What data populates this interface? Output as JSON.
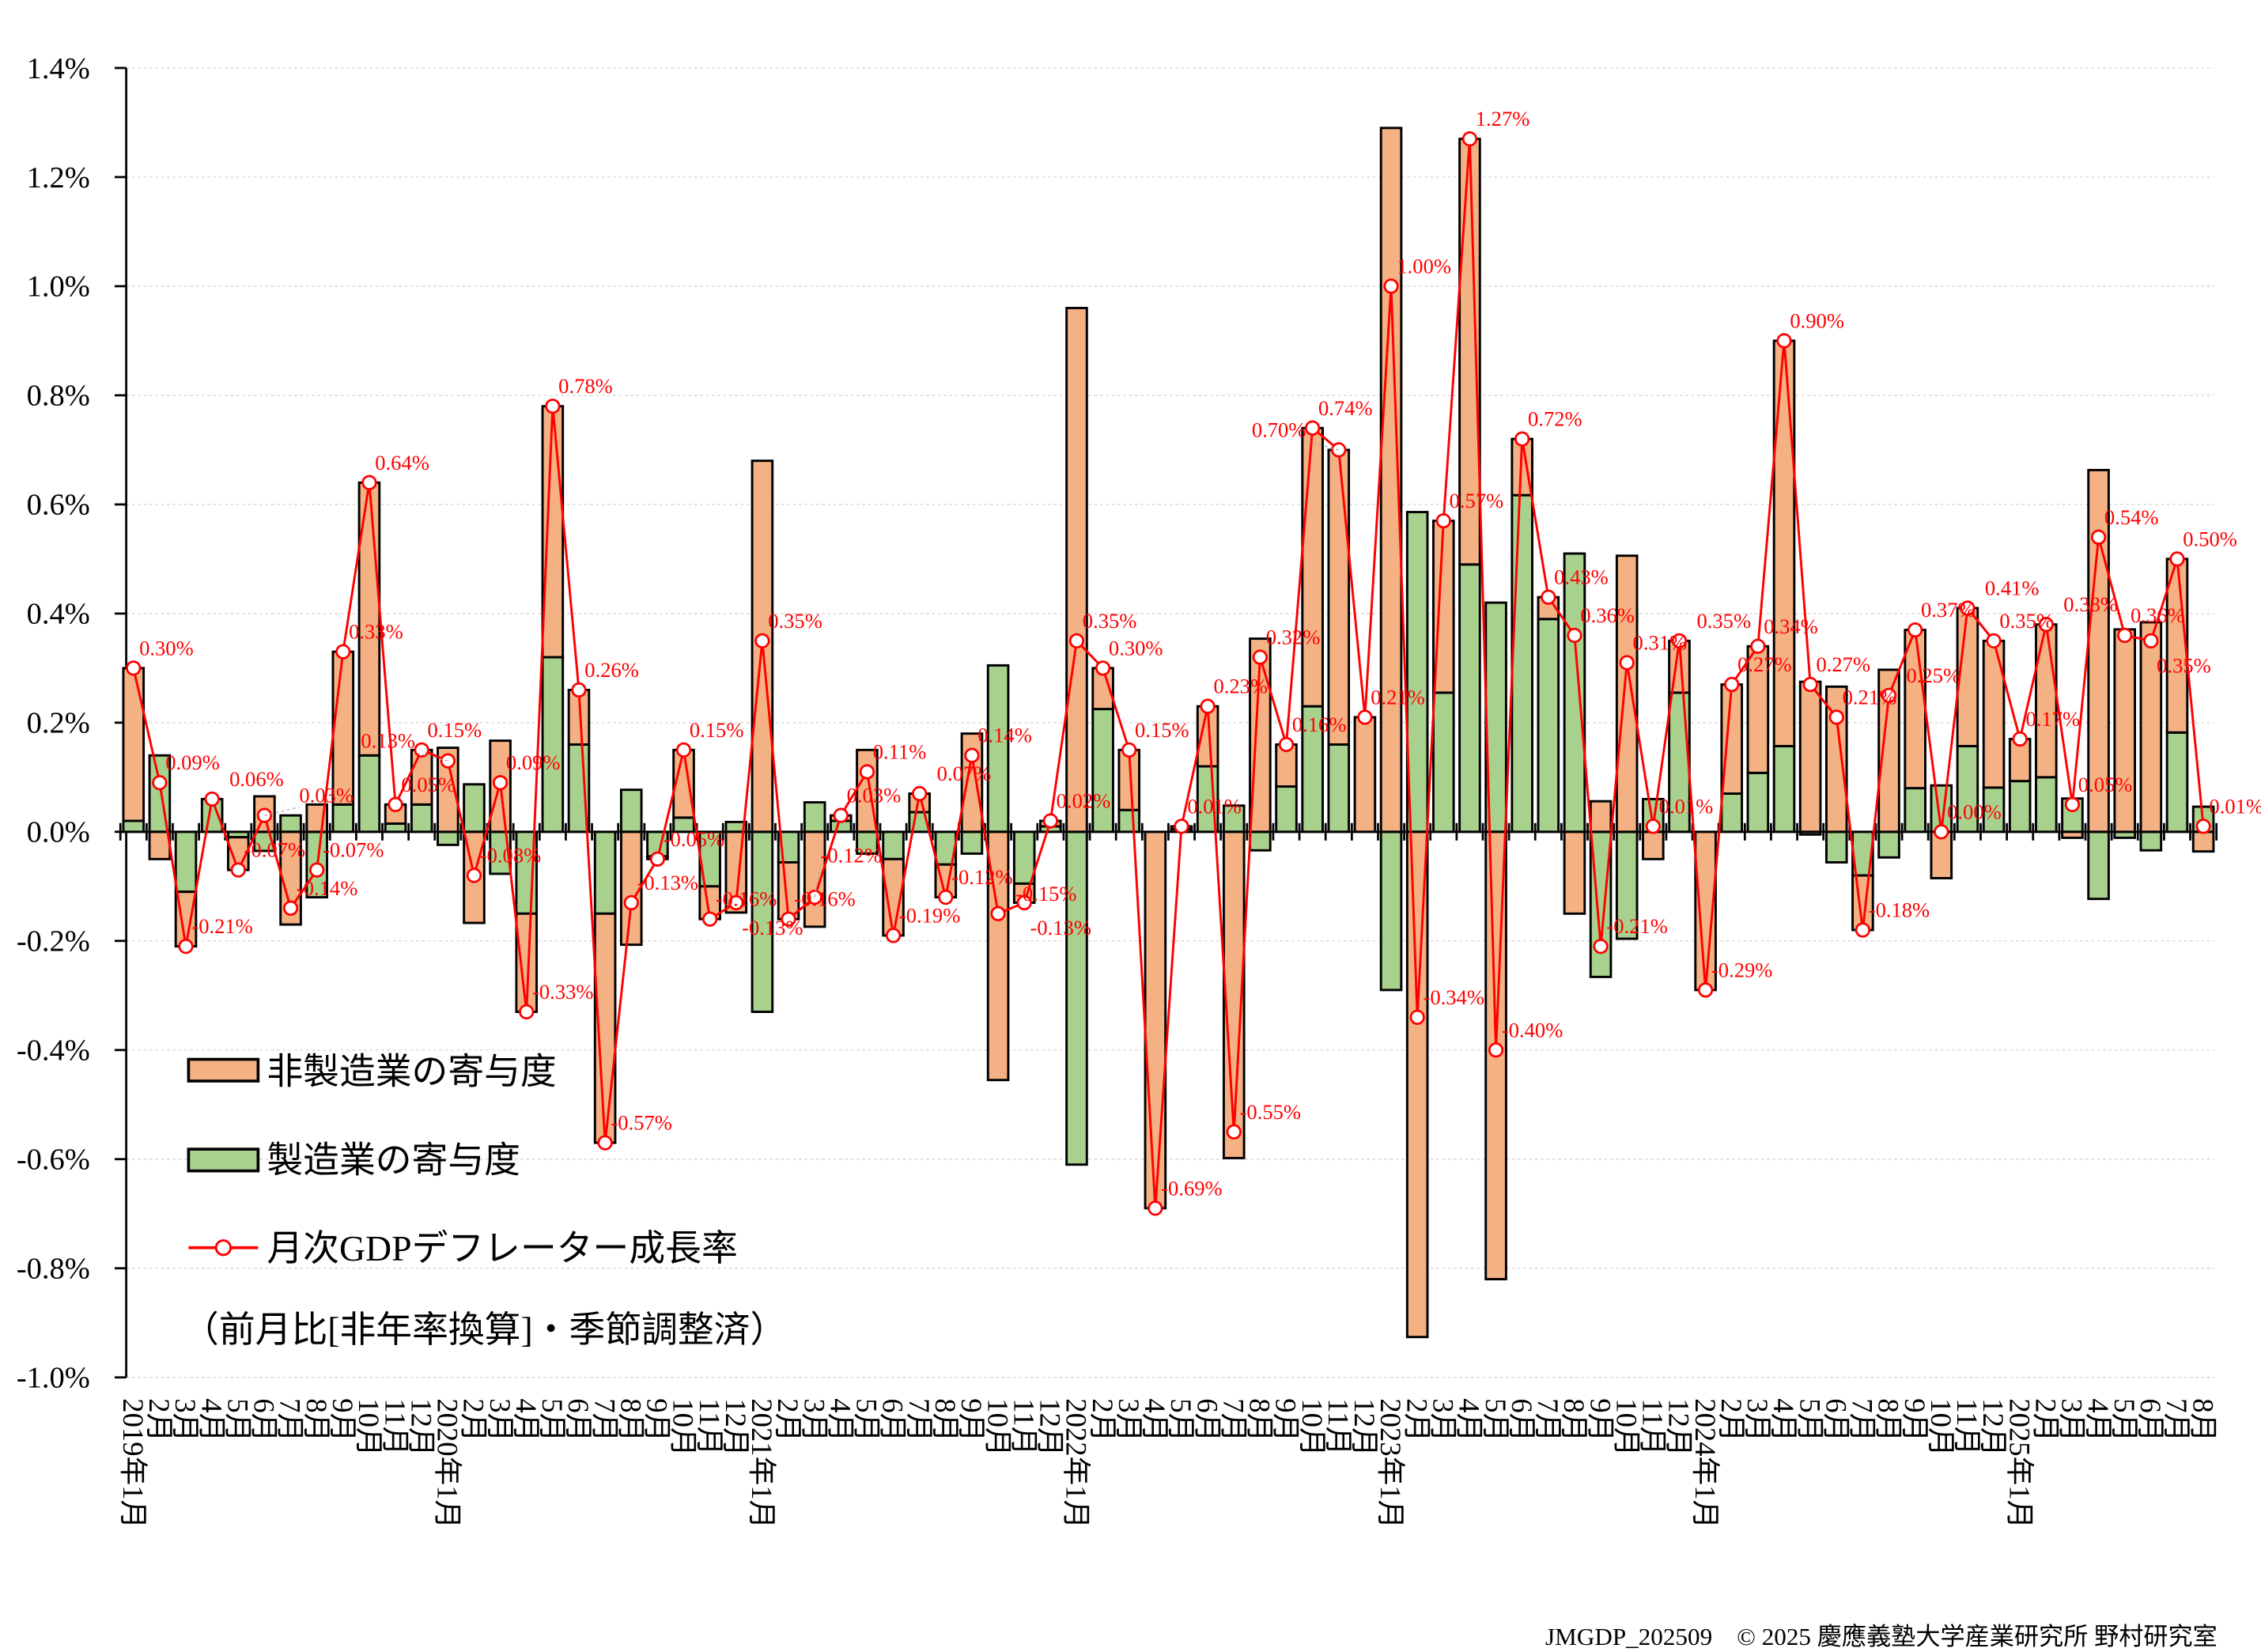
{
  "chart_data": {
    "type": "bar",
    "subtype": "stacked bar with line overlay",
    "ylim": [
      -1.0,
      1.4
    ],
    "yticks": [
      "1.4%",
      "1.2%",
      "1.0%",
      "0.8%",
      "0.6%",
      "0.4%",
      "0.2%",
      "0.0%",
      "-0.2%",
      "-0.4%",
      "-0.6%",
      "-0.8%",
      "-1.0%"
    ],
    "ytick_values": [
      1.4,
      1.2,
      1.0,
      0.8,
      0.6,
      0.4,
      0.2,
      0.0,
      -0.2,
      -0.4,
      -0.6,
      -0.8,
      -1.0
    ],
    "grid": true,
    "legend_placement": "bottom-left",
    "categories": [
      "2019年1月",
      "2月",
      "3月",
      "4月",
      "5月",
      "6月",
      "7月",
      "8月",
      "9月",
      "10月",
      "11月",
      "12月",
      "2020年1月",
      "2月",
      "3月",
      "4月",
      "5月",
      "6月",
      "7月",
      "8月",
      "9月",
      "10月",
      "11月",
      "12月",
      "2021年1月",
      "2月",
      "3月",
      "4月",
      "5月",
      "6月",
      "7月",
      "8月",
      "9月",
      "10月",
      "11月",
      "12月",
      "2022年1月",
      "2月",
      "3月",
      "4月",
      "5月",
      "6月",
      "7月",
      "8月",
      "9月",
      "10月",
      "11月",
      "12月",
      "2023年1月",
      "2月",
      "3月",
      "4月",
      "5月",
      "6月",
      "7月",
      "8月",
      "9月",
      "10月",
      "11月",
      "12月",
      "2024年1月",
      "2月",
      "3月",
      "4月",
      "5月",
      "6月",
      "7月",
      "8月",
      "9月",
      "10月",
      "11月",
      "12月",
      "2025年1月",
      "2月",
      "3月",
      "4月",
      "5月",
      "6月",
      "7月",
      "8月"
    ],
    "series": [
      {
        "name": "非製造業の寄与度",
        "kind": "bar",
        "color": "#F4B183",
        "values": [
          0.28,
          -0.05,
          -0.1,
          0,
          -0.06,
          0.065,
          -0.17,
          0.05,
          0.28,
          0.5,
          0.035,
          0.1,
          0.154,
          -0.167,
          0.167,
          -0.18,
          0.46,
          0.1,
          -0.42,
          -0.207,
          -0.005,
          0.124,
          -0.06,
          -0.148,
          0.68,
          -0.104,
          -0.174,
          0.01,
          0.15,
          -0.14,
          0.034,
          -0.06,
          0.18,
          -0.455,
          -0.035,
          0.01,
          0.96,
          0.075,
          0.11,
          -0.69,
          0.005,
          0.11,
          -0.598,
          0.354,
          0.077,
          0.51,
          0.54,
          0.21,
          1.29,
          -0.926,
          0.315,
          0.78,
          -0.82,
          0.103,
          0.04,
          -0.15,
          0.056,
          0.506,
          -0.05,
          0.095,
          -0.29,
          0.2,
          0.232,
          0.743,
          0.275,
          0.266,
          -0.1,
          0.297,
          0.29,
          -0.085,
          0.253,
          0.269,
          0.077,
          0.28,
          -0.011,
          0.663,
          0.371,
          0.384,
          0.318,
          -0.036
        ]
      },
      {
        "name": "製造業の寄与度",
        "kind": "bar",
        "color": "#A9D18E",
        "values": [
          0.02,
          0.14,
          -0.11,
          0.06,
          -0.01,
          -0.035,
          0.03,
          -0.12,
          0.05,
          0.14,
          0.015,
          0.05,
          -0.024,
          0.087,
          -0.077,
          -0.15,
          0.32,
          0.16,
          -0.15,
          0.077,
          -0.045,
          0.026,
          -0.1,
          0.018,
          -0.33,
          -0.056,
          0.054,
          0.02,
          -0.04,
          -0.05,
          0.036,
          -0.06,
          -0.04,
          0.305,
          -0.095,
          0.01,
          -0.61,
          0.225,
          0.04,
          0,
          0.005,
          0.12,
          0.048,
          -0.034,
          0.083,
          0.23,
          0.16,
          0,
          -0.29,
          0.586,
          0.255,
          0.49,
          0.42,
          0.617,
          0.39,
          0.51,
          -0.266,
          -0.196,
          0.06,
          0.255,
          0,
          0.07,
          0.108,
          0.157,
          -0.005,
          -0.056,
          -0.08,
          -0.047,
          0.08,
          0.085,
          0.157,
          0.081,
          0.093,
          0.1,
          0.061,
          -0.123,
          -0.011,
          -0.034,
          0.182,
          0.046
        ]
      },
      {
        "name": "月次GDPデフレーター成長率",
        "kind": "line",
        "color": "#FF0000",
        "values": [
          0.3,
          0.09,
          -0.21,
          0.06,
          -0.07,
          0.03,
          -0.14,
          -0.07,
          0.33,
          0.64,
          0.05,
          0.15,
          0.13,
          -0.08,
          0.09,
          -0.33,
          0.78,
          0.26,
          -0.57,
          -0.13,
          -0.05,
          0.15,
          -0.16,
          -0.13,
          0.35,
          -0.16,
          -0.12,
          0.03,
          0.11,
          -0.19,
          0.07,
          -0.12,
          0.14,
          -0.15,
          -0.13,
          0.02,
          0.35,
          0.3,
          0.15,
          -0.69,
          0.01,
          0.23,
          -0.55,
          0.32,
          0.16,
          0.74,
          0.7,
          0.21,
          1.0,
          -0.34,
          0.57,
          1.27,
          -0.4,
          0.72,
          0.43,
          0.36,
          -0.21,
          0.31,
          0.01,
          0.35,
          -0.29,
          0.27,
          0.34,
          0.9,
          0.27,
          0.21,
          -0.18,
          0.25,
          0.37,
          0.0,
          0.41,
          0.35,
          0.17,
          0.38,
          0.05,
          0.54,
          0.36,
          0.35,
          0.5,
          0.01
        ],
        "labels": [
          "0.30%",
          "0.09%",
          "-0.21%",
          "0.06%",
          "-0.07%",
          "0.03%",
          "-0.14%",
          "-0.07%",
          "0.33%",
          "0.64%",
          "0.05%",
          "0.15%",
          "0.13%",
          "-0.08%",
          "0.09%",
          "-0.33%",
          "0.78%",
          "0.26%",
          "-0.57%",
          "-0.13%",
          "-0.05%",
          "0.15%",
          "-0.16%",
          "-0.13%",
          "0.35%",
          "-0.16%",
          "-0.12%",
          "0.03%",
          "0.11%",
          "-0.19%",
          "0.07%",
          "-0.12%",
          "0.14%",
          "-0.15%",
          "-0.13%",
          "0.02%",
          "0.35%",
          "0.30%",
          "0.15%",
          "-0.69%",
          "0.01%",
          "0.23%",
          "-0.55%",
          "0.32%",
          "0.16%",
          "0.74%",
          "0.70%",
          "0.21%",
          "1.00%",
          "-0.34%",
          "0.57%",
          "1.27%",
          "-0.40%",
          "0.72%",
          "0.43%",
          "0.36%",
          "-0.21%",
          "0.31%",
          "0.01%",
          "0.35%",
          "-0.29%",
          "0.27%",
          "0.34%",
          "0.90%",
          "0.27%",
          "0.21%",
          "-0.18%",
          "0.25%",
          "0.37%",
          "0.00%",
          "0.41%",
          "0.35%",
          "0.17%",
          "0.38%",
          "0.05%",
          "0.54%",
          "0.36%",
          "0.35%",
          "0.50%",
          "0.01%"
        ]
      }
    ],
    "legend": {
      "nonmfg": "非製造業の寄与度",
      "mfg": "製造業の寄与度",
      "line": "月次GDPデフレーター成長率",
      "note": "（前月比[非年率換算]・季節調整済）"
    },
    "colors": {
      "nonmfg": "#F4B183",
      "mfg": "#A9D18E",
      "line": "#FF0000"
    }
  },
  "footer": "JMGDP_202509　© 2025 慶應義塾大学産業研究所 野村研究室"
}
